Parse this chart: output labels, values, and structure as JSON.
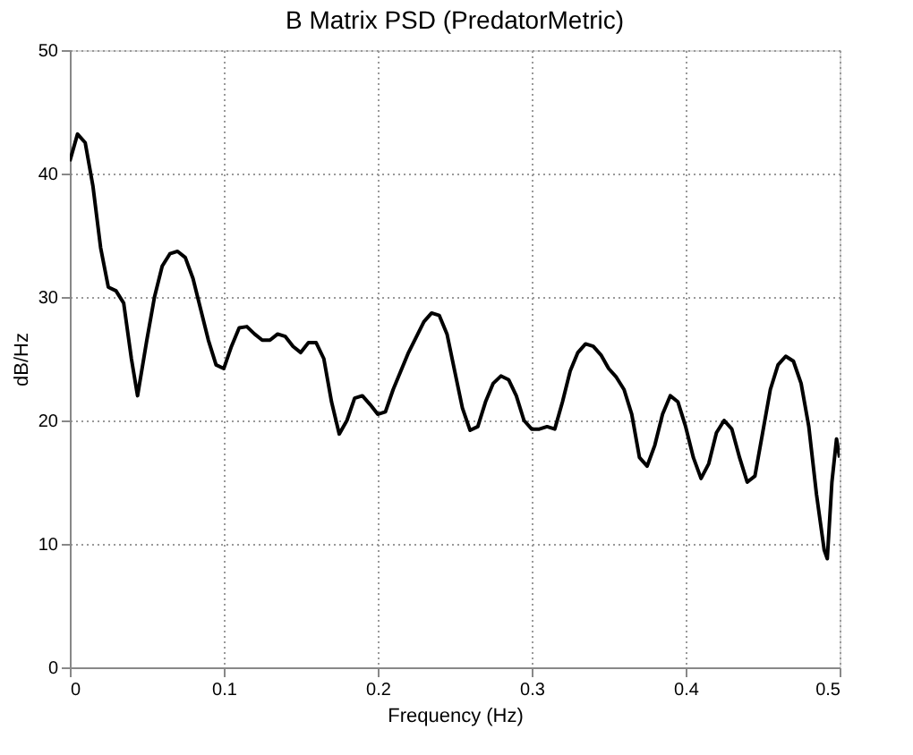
{
  "chart_data": {
    "type": "line",
    "title": "B Matrix PSD (PredatorMetric)",
    "xlabel": "Frequency (Hz)",
    "ylabel": "dB/Hz",
    "xlim": [
      0,
      0.5
    ],
    "xticks": [
      0,
      0.1,
      0.2,
      0.3,
      0.4,
      0.5
    ],
    "ylim": [
      0,
      50
    ],
    "yticks": [
      0,
      10,
      20,
      30,
      40,
      50
    ],
    "grid": true,
    "line_style": "solid",
    "marker": "none",
    "series": [
      {
        "color": "#000000",
        "x": [
          0,
          0.005,
          0.01,
          0.015,
          0.02,
          0.025,
          0.03,
          0.035,
          0.04,
          0.044,
          0.05,
          0.055,
          0.06,
          0.065,
          0.07,
          0.075,
          0.08,
          0.085,
          0.09,
          0.095,
          0.1,
          0.105,
          0.11,
          0.115,
          0.12,
          0.125,
          0.13,
          0.135,
          0.14,
          0.145,
          0.15,
          0.155,
          0.16,
          0.165,
          0.17,
          0.175,
          0.18,
          0.185,
          0.19,
          0.195,
          0.2,
          0.205,
          0.21,
          0.22,
          0.23,
          0.235,
          0.24,
          0.245,
          0.25,
          0.255,
          0.26,
          0.265,
          0.27,
          0.275,
          0.28,
          0.285,
          0.29,
          0.295,
          0.3,
          0.305,
          0.31,
          0.315,
          0.32,
          0.325,
          0.33,
          0.335,
          0.34,
          0.345,
          0.35,
          0.355,
          0.36,
          0.365,
          0.37,
          0.375,
          0.38,
          0.385,
          0.39,
          0.395,
          0.4,
          0.405,
          0.41,
          0.415,
          0.42,
          0.425,
          0.43,
          0.435,
          0.44,
          0.445,
          0.45,
          0.455,
          0.46,
          0.465,
          0.47,
          0.475,
          0.48,
          0.485,
          0.49,
          0.492,
          0.495,
          0.498,
          0.5
        ],
        "values": [
          41,
          43.2,
          42.5,
          39,
          34,
          30.8,
          30.5,
          29.5,
          25,
          22,
          26.5,
          30,
          32.5,
          33.5,
          33.7,
          33.2,
          31.5,
          29,
          26.5,
          24.5,
          24.2,
          26,
          27.5,
          27.6,
          27,
          26.5,
          26.5,
          27,
          26.8,
          26,
          25.5,
          26.3,
          26.3,
          25,
          21.5,
          18.9,
          20,
          21.8,
          22,
          21.3,
          20.5,
          20.7,
          22.5,
          25.5,
          28,
          28.7,
          28.5,
          27,
          24,
          21,
          19.2,
          19.5,
          21.5,
          23,
          23.6,
          23.3,
          22,
          20,
          19.3,
          19.3,
          19.5,
          19.3,
          21.5,
          24,
          25.5,
          26.2,
          26,
          25.3,
          24.2,
          23.5,
          22.5,
          20.5,
          17,
          16.3,
          18,
          20.5,
          22,
          21.5,
          19.5,
          17,
          15.3,
          16.5,
          19,
          20,
          19.3,
          17,
          15,
          15.5,
          19,
          22.5,
          24.5,
          25.2,
          24.8,
          23,
          19.5,
          14,
          9.5,
          8.8,
          15,
          18.5,
          17
        ]
      }
    ]
  }
}
